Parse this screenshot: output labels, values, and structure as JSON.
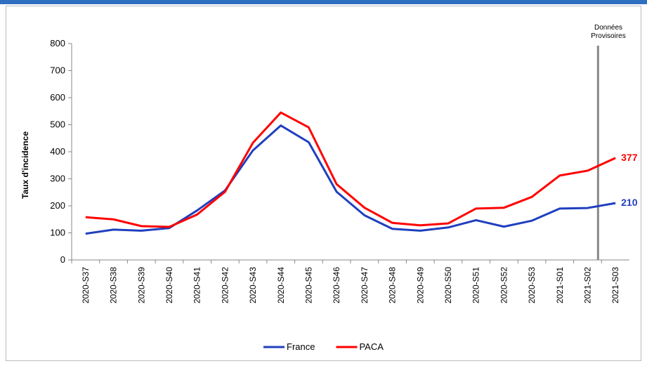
{
  "chart_data": {
    "type": "line",
    "y_label": "Taux d'incidence",
    "annotation": [
      "Données",
      "Provisoires"
    ],
    "categories": [
      "2020-S37",
      "2020-S38",
      "2020-S39",
      "2020-S40",
      "2020-S41",
      "2020-S42",
      "2020-S43",
      "2020-S44",
      "2020-S45",
      "2020-S46",
      "2020-S47",
      "2020-S48",
      "2020-S49",
      "2020-S50",
      "2020-S51",
      "2020-S52",
      "2020-S53",
      "2021-S01",
      "2021-S02",
      "2021-S03"
    ],
    "series": [
      {
        "name": "France",
        "color": "#1f3fbf",
        "values": [
          97,
          112,
          108,
          118,
          183,
          257,
          405,
          497,
          435,
          252,
          165,
          115,
          108,
          120,
          147,
          123,
          145,
          190,
          192,
          210
        ]
      },
      {
        "name": "PACA",
        "color": "#ff0000",
        "values": [
          158,
          150,
          125,
          122,
          168,
          252,
          433,
          545,
          490,
          280,
          193,
          137,
          128,
          135,
          190,
          193,
          233,
          312,
          330,
          377
        ]
      }
    ],
    "ylim": [
      0,
      800
    ],
    "yticks": [
      0,
      100,
      200,
      300,
      400,
      500,
      600,
      700,
      800
    ],
    "grid": false
  }
}
